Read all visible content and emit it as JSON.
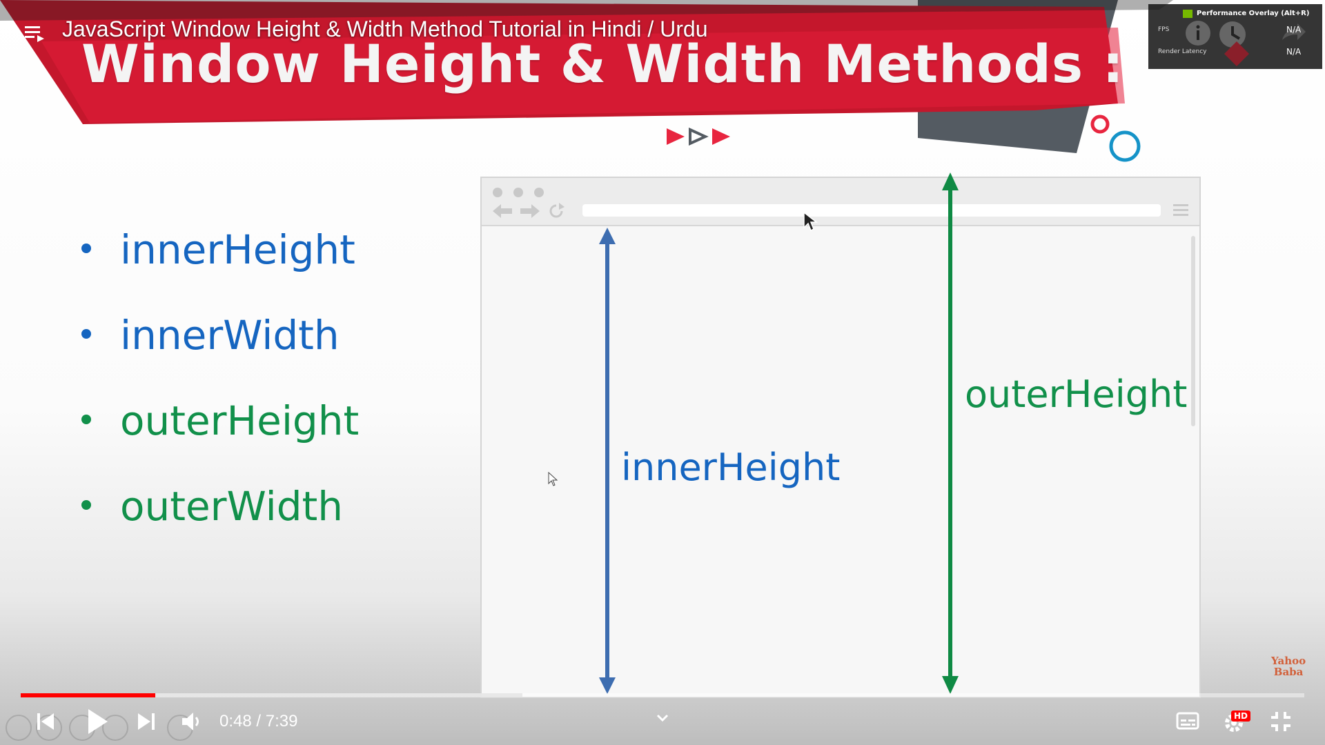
{
  "player": {
    "video_title": "JavaScript Window Height & Width Method Tutorial in Hindi / Urdu",
    "time": "0:48 / 7:39",
    "progress_fraction": 0.105,
    "buffered_fraction": 0.391,
    "hd_badge": "HD",
    "accent_color": "#ff0000"
  },
  "slide": {
    "title": "Window Height & Width Methods :",
    "bullets": [
      {
        "label": "innerHeight",
        "color": "#1565c0"
      },
      {
        "label": "innerWidth",
        "color": "#1565c0"
      },
      {
        "label": "outerHeight",
        "color": "#11904a"
      },
      {
        "label": "outerWidth",
        "color": "#11904a"
      }
    ],
    "diagram": {
      "inner_label": "innerHeight",
      "outer_label": "outerHeight"
    },
    "logo": {
      "line1": "Yahoo",
      "line2": "Baba"
    }
  },
  "overlay": {
    "title": "Performance Overlay (Alt+R)",
    "fps_label": "FPS",
    "render_label": "Render Latency",
    "fps_value": "N/A",
    "render_value": "N/A"
  },
  "icons": [
    "playlist-icon",
    "skip-previous-icon",
    "play-icon",
    "skip-next-icon",
    "volume-icon",
    "chevron-down-icon",
    "subtitles-icon",
    "gear-icon",
    "fullscreen-exit-icon",
    "info-icon",
    "clock-icon",
    "share-icon"
  ]
}
